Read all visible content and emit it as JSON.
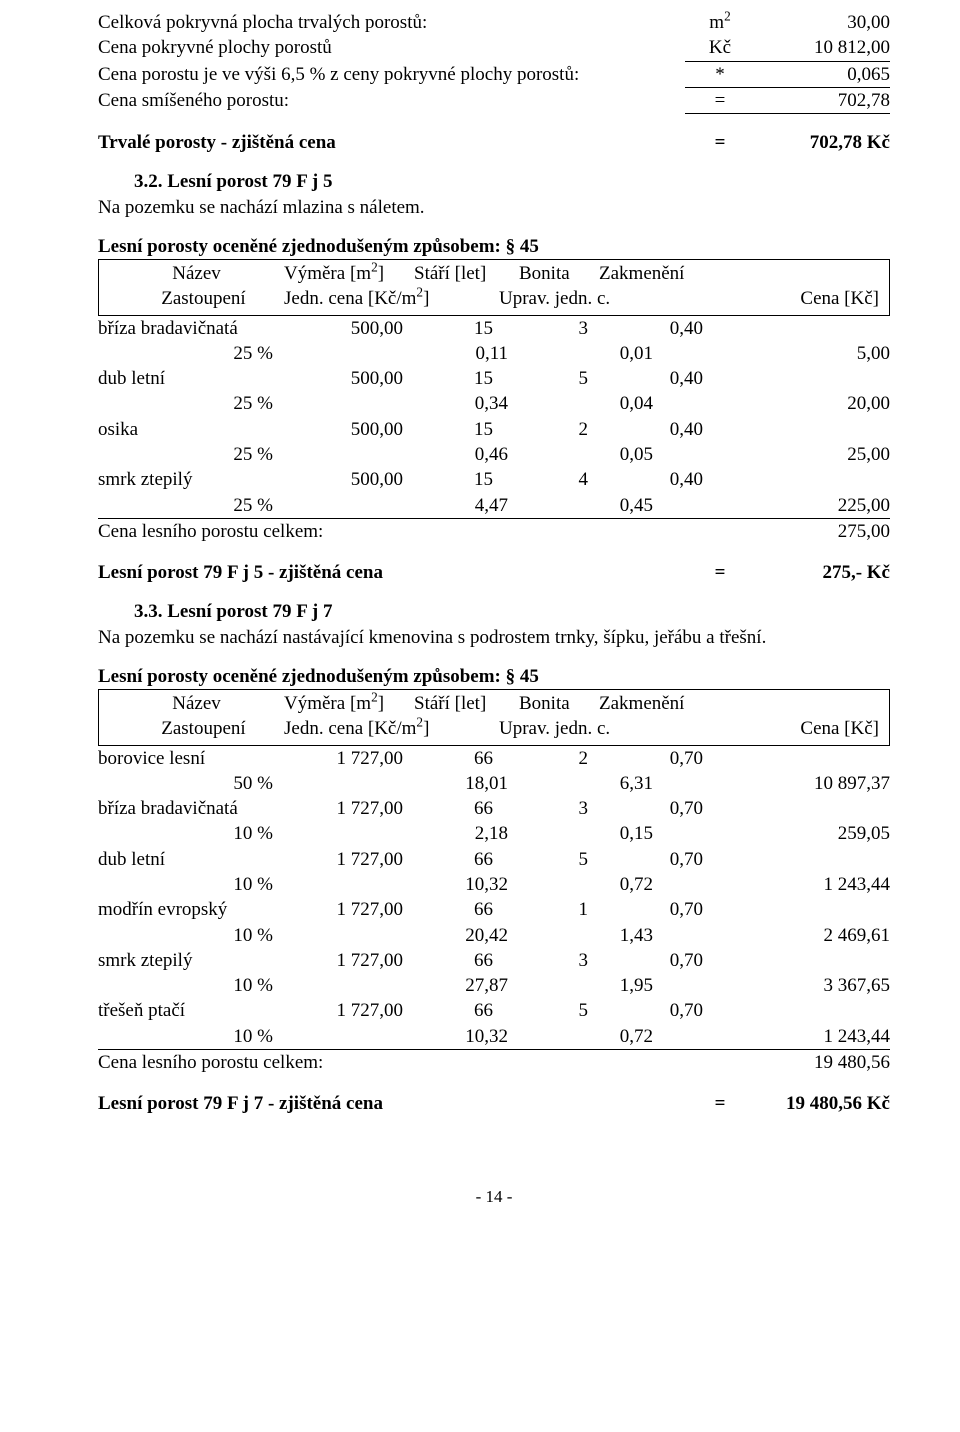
{
  "block1": {
    "r1": {
      "label": "Celková pokryvná plocha trvalých porostů:",
      "unit": "m",
      "sup": "2",
      "val": "30,00"
    },
    "r2": {
      "label": "Cena pokryvné plochy porostů",
      "unit": "Kč",
      "val": "10 812,00"
    },
    "r3": {
      "label": "Cena porostu je ve výši 6,5 % z ceny pokryvné plochy porostů:",
      "unit": "*",
      "val": "0,065"
    },
    "r4": {
      "label": "Cena smíšeného porostu:",
      "unit": "=",
      "val": "702,78"
    },
    "result": {
      "label": "Trvalé porosty - zjištěná cena",
      "unit": "=",
      "val": "702,78 Kč"
    }
  },
  "sec32": {
    "heading": "3.2. Lesní porost 79 F j 5",
    "note": "Na pozemku se nachází mlazina s náletem.",
    "subtitle": "Lesní porosty oceněné zjednodušeným způsobem: § 45",
    "header": {
      "name": "Název",
      "area": "Výměra [m",
      "area_sup": "2",
      "area_close": "]",
      "age": "Stáří [let]",
      "bon": "Bonita",
      "zak": "Zakmenění",
      "zast": "Zastoupení",
      "jedn": "Jedn. cena [Kč/m",
      "jedn_sup": "2",
      "jedn_close": "]",
      "uprav": "Uprav. jedn. c.",
      "cena": "Cena [Kč]"
    },
    "species": [
      {
        "name": "bříza bradavičnatá",
        "area": "500,00",
        "age": "15",
        "bon": "3",
        "zak": "0,40",
        "pct": "25 %",
        "jedn": "0,11",
        "uprav": "0,01",
        "cena": "5,00"
      },
      {
        "name": "dub letní",
        "area": "500,00",
        "age": "15",
        "bon": "5",
        "zak": "0,40",
        "pct": "25 %",
        "jedn": "0,34",
        "uprav": "0,04",
        "cena": "20,00"
      },
      {
        "name": "osika",
        "area": "500,00",
        "age": "15",
        "bon": "2",
        "zak": "0,40",
        "pct": "25 %",
        "jedn": "0,46",
        "uprav": "0,05",
        "cena": "25,00"
      },
      {
        "name": "smrk ztepilý",
        "area": "500,00",
        "age": "15",
        "bon": "4",
        "zak": "0,40",
        "pct": "25 %",
        "jedn": "4,47",
        "uprav": "0,45",
        "cena": "225,00"
      }
    ],
    "total": {
      "label": "Cena lesního porostu celkem:",
      "val": "275,00"
    },
    "result": {
      "label": "Lesní porost 79 F j 5 - zjištěná cena",
      "unit": "=",
      "val": "275,- Kč"
    }
  },
  "sec33": {
    "heading": "3.3. Lesní porost 79 F j 7",
    "note": "Na pozemku se nachází nastávající kmenovina s podrostem trnky, šípku, jeřábu a třešní.",
    "subtitle": "Lesní porosty oceněné zjednodušeným způsobem: § 45",
    "species": [
      {
        "name": "borovice lesní",
        "area": "1 727,00",
        "age": "66",
        "bon": "2",
        "zak": "0,70",
        "pct": "50 %",
        "jedn": "18,01",
        "uprav": "6,31",
        "cena": "10 897,37"
      },
      {
        "name": "bříza bradavičnatá",
        "area": "1 727,00",
        "age": "66",
        "bon": "3",
        "zak": "0,70",
        "pct": "10 %",
        "jedn": "2,18",
        "uprav": "0,15",
        "cena": "259,05"
      },
      {
        "name": "dub letní",
        "area": "1 727,00",
        "age": "66",
        "bon": "5",
        "zak": "0,70",
        "pct": "10 %",
        "jedn": "10,32",
        "uprav": "0,72",
        "cena": "1 243,44"
      },
      {
        "name": "modřín evropský",
        "area": "1 727,00",
        "age": "66",
        "bon": "1",
        "zak": "0,70",
        "pct": "10 %",
        "jedn": "20,42",
        "uprav": "1,43",
        "cena": "2 469,61"
      },
      {
        "name": "smrk ztepilý",
        "area": "1 727,00",
        "age": "66",
        "bon": "3",
        "zak": "0,70",
        "pct": "10 %",
        "jedn": "27,87",
        "uprav": "1,95",
        "cena": "3 367,65"
      },
      {
        "name": "třešeň ptačí",
        "area": "1 727,00",
        "age": "66",
        "bon": "5",
        "zak": "0,70",
        "pct": "10 %",
        "jedn": "10,32",
        "uprav": "0,72",
        "cena": "1 243,44"
      }
    ],
    "total": {
      "label": "Cena lesního porostu celkem:",
      "val": "19 480,56"
    },
    "result": {
      "label": "Lesní porost 79 F j 7 - zjištěná cena",
      "unit": "=",
      "val": "19 480,56 Kč"
    }
  },
  "pagenum": "- 14 -"
}
